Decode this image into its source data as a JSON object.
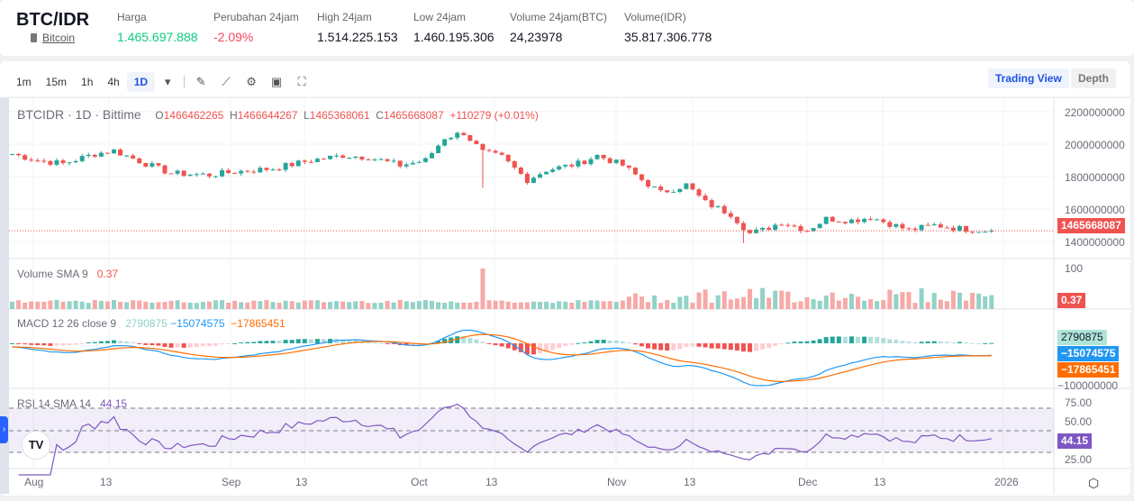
{
  "header": {
    "pair": "BTC/IDR",
    "coin_name": "Bitcoin",
    "stats": [
      {
        "label": "Harga",
        "value": "1.465.697.888",
        "color": "#0ecb81"
      },
      {
        "label": "Perubahan 24jam",
        "value": "-2.09%",
        "color": "#f6465d"
      },
      {
        "label": "High 24jam",
        "value": "1.514.225.153"
      },
      {
        "label": "Low 24jam",
        "value": "1.460.195.306"
      },
      {
        "label": "Volume 24jam(BTC)",
        "value": "24,23978"
      },
      {
        "label": "Volume(IDR)",
        "value": "35.817.306.778"
      }
    ]
  },
  "toolbar": {
    "intervals": [
      "1m",
      "15m",
      "1h",
      "4h",
      "1D"
    ],
    "active": "1D",
    "icons": [
      "chevron-down-icon",
      "draw-icon",
      "indicator-icon",
      "gear-icon",
      "save-icon",
      "fullscreen-icon"
    ],
    "trading_view": "Trading View",
    "depth": "Depth"
  },
  "legend": {
    "title": "BTCIDR · 1D · Bittime",
    "o_label": "O",
    "o": "1466462265",
    "h_label": "H",
    "h": "1466644267",
    "l_label": "L",
    "l": "1465368061",
    "c_label": "C",
    "c": "1465668087",
    "change": "+110279 (+0.01%)"
  },
  "volume": {
    "label": "Volume SMA 9",
    "value": "0.37",
    "axis": "100"
  },
  "macd": {
    "label": "MACD 12 26 close 9",
    "hist": "2790875",
    "macd": "−15074575",
    "signal": "−17865451",
    "axis": "−100000000"
  },
  "rsi": {
    "label": "RSI 14 SMA 14",
    "value": "44.15",
    "axis": [
      "75.00",
      "50.00",
      "25.00"
    ]
  },
  "colors": {
    "up": "#26a69a",
    "down": "#ef5350",
    "macd": "#2196f3",
    "signal": "#ff6d00",
    "rsi": "#7e57c2",
    "accent": "#1e53e5"
  },
  "chart_data": {
    "type": "candlestick",
    "price_axis": [
      "2200000000",
      "2000000000",
      "1800000000",
      "1600000000",
      "1400000000"
    ],
    "last_price": "1465668087",
    "time_axis": [
      "Aug",
      "13",
      "Sep",
      "13",
      "Oct",
      "13",
      "Nov",
      "13",
      "Dec",
      "13",
      "2026"
    ],
    "approx_close_millions": [
      [
        "07-28",
        1940
      ],
      [
        "08-01",
        1900
      ],
      [
        "08-05",
        1880
      ],
      [
        "08-10",
        1940
      ],
      [
        "08-13",
        1960
      ],
      [
        "08-18",
        1880
      ],
      [
        "08-22",
        1820
      ],
      [
        "08-28",
        1810
      ],
      [
        "09-01",
        1830
      ],
      [
        "09-07",
        1850
      ],
      [
        "09-13",
        1900
      ],
      [
        "09-18",
        1930
      ],
      [
        "09-22",
        1920
      ],
      [
        "09-27",
        1870
      ],
      [
        "10-01",
        1900
      ],
      [
        "10-04",
        2040
      ],
      [
        "10-07",
        2070
      ],
      [
        "10-10",
        1950
      ],
      [
        "10-13",
        1920
      ],
      [
        "10-17",
        1780
      ],
      [
        "10-20",
        1840
      ],
      [
        "10-25",
        1880
      ],
      [
        "10-28",
        1930
      ],
      [
        "11-01",
        1870
      ],
      [
        "11-04",
        1780
      ],
      [
        "11-07",
        1700
      ],
      [
        "11-11",
        1750
      ],
      [
        "11-14",
        1640
      ],
      [
        "11-18",
        1570
      ],
      [
        "11-21",
        1450
      ],
      [
        "11-23",
        1470
      ],
      [
        "11-26",
        1520
      ],
      [
        "11-30",
        1470
      ],
      [
        "12-03",
        1540
      ],
      [
        "12-07",
        1530
      ],
      [
        "12-10",
        1550
      ],
      [
        "12-13",
        1510
      ],
      [
        "12-16",
        1470
      ],
      [
        "12-20",
        1500
      ],
      [
        "12-24",
        1480
      ],
      [
        "12-29",
        1466
      ]
    ]
  }
}
